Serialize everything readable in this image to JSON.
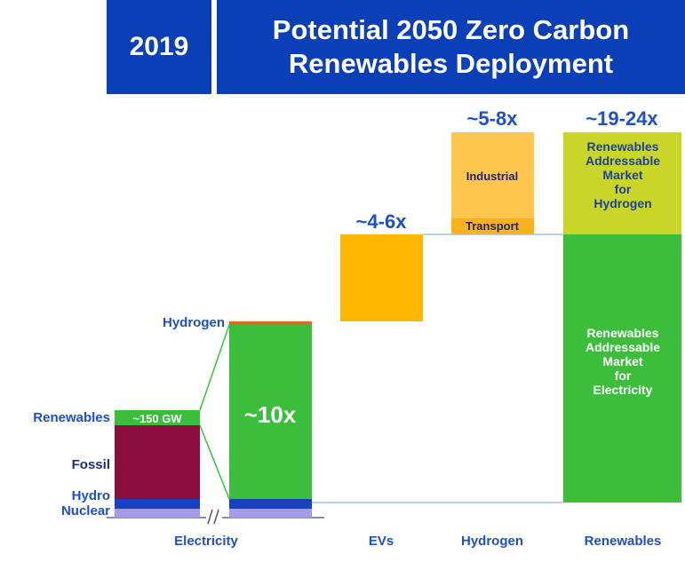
{
  "header": {
    "year": "2019",
    "title_line1": "Potential 2050 Zero Carbon",
    "title_line2": "Renewables Deployment"
  },
  "chart_data": {
    "type": "bar",
    "title": "Potential 2050 Zero Carbon Renewables Deployment",
    "categories": [
      "Electricity",
      "EVs",
      "Hydrogen",
      "Renewables"
    ],
    "bars": [
      {
        "category": "2019 Electricity",
        "segments": [
          {
            "name": "Nuclear",
            "label": "Nuclear",
            "value": 0.12,
            "color": "#a39be8"
          },
          {
            "name": "Hydro",
            "label": "Hydro",
            "value": 0.13,
            "color": "#1a3fbf"
          },
          {
            "name": "Fossil",
            "label": "Fossil",
            "value": 1.0,
            "color": "#8a0d3d"
          },
          {
            "name": "Renewables",
            "label": "Renewables",
            "value": 0.2,
            "color": "#3cbe3c",
            "inner_label": "~150 GW"
          }
        ]
      },
      {
        "category": "2050 Electricity",
        "segments": [
          {
            "name": "Nuclear",
            "value": 0.12,
            "color": "#a39be8"
          },
          {
            "name": "Hydro",
            "value": 0.13,
            "color": "#1a3fbf"
          },
          {
            "name": "Renewables",
            "value": 2.4,
            "color": "#3cbe3c",
            "inner_label": "~10x"
          },
          {
            "name": "Hydrogen",
            "label": "Hydrogen",
            "value": 0.05,
            "color": "#e06a1a"
          }
        ]
      },
      {
        "category": "EVs",
        "multiplier": "~4-6x",
        "segments": [
          {
            "name": "EVs",
            "value": 1.3,
            "base": 2.7,
            "color": "#ffb700"
          }
        ]
      },
      {
        "category": "Hydrogen",
        "multiplier": "~5-8x",
        "segments": [
          {
            "name": "Transport",
            "label": "Transport",
            "value": 0.22,
            "base": 4.0,
            "color": "#f9b21a"
          },
          {
            "name": "Industrial",
            "label": "Industrial",
            "value": 1.3,
            "base": 4.22,
            "color": "#ffc64d"
          }
        ]
      },
      {
        "category": "Renewables",
        "multiplier": "~19-24x",
        "segments": [
          {
            "name": "Electricity",
            "value": 3.75,
            "base": 0.25,
            "color": "#3cbe3c",
            "inner_lines": [
              "Renewables",
              "Addressable",
              "Market",
              "for",
              "Electricity"
            ]
          },
          {
            "name": "Hydrogen",
            "value": 1.52,
            "base": 4.0,
            "color": "#c9d629",
            "inner_lines": [
              "Renewables",
              "Addressable",
              "Market",
              "for",
              "Hydrogen"
            ]
          }
        ]
      }
    ]
  }
}
